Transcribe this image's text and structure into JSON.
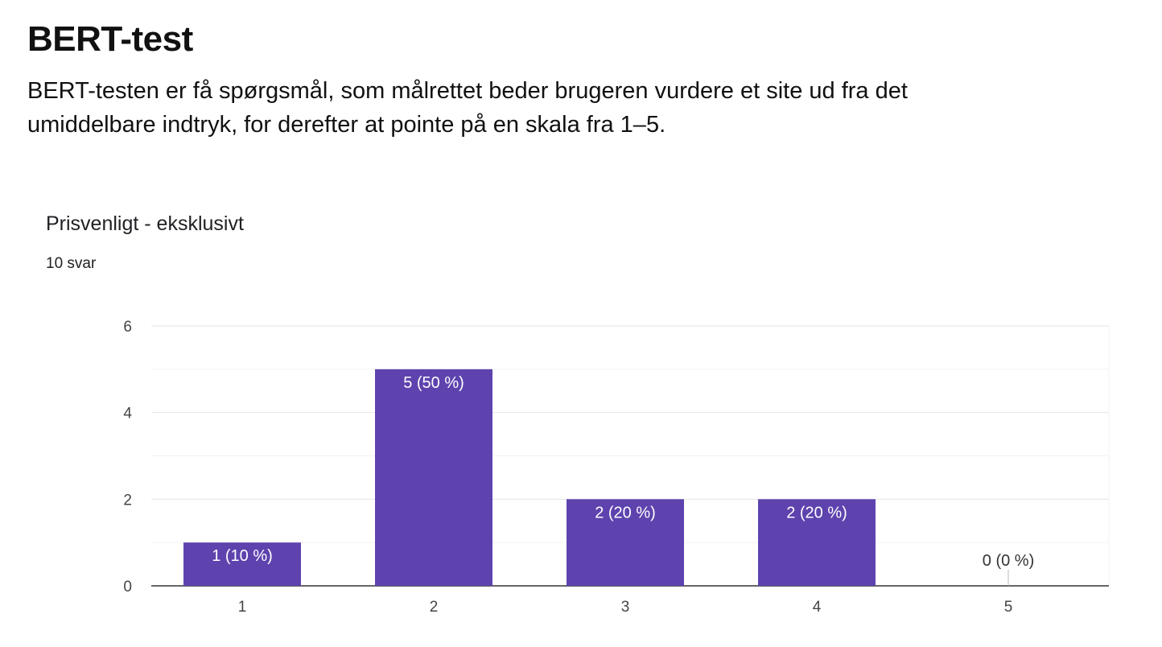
{
  "page": {
    "title": "BERT-test",
    "intro": "BERT-testen er få spørgsmål, som målrettet beder brugeren vurdere et site ud fra det umiddelbare indtryk, for derefter at pointe på en skala fra 1–5."
  },
  "chart_data": {
    "type": "bar",
    "title": "Prisvenligt - eksklusivt",
    "subtitle": "10 svar",
    "categories": [
      "1",
      "2",
      "3",
      "4",
      "5"
    ],
    "values": [
      1,
      5,
      2,
      2,
      0
    ],
    "labels": [
      "1 (10 %)",
      "5 (50 %)",
      "2 (20 %)",
      "2 (20 %)",
      "0 (0 %)"
    ],
    "ylim": [
      0,
      6
    ],
    "yticks": [
      0,
      2,
      4,
      6
    ],
    "grid": true,
    "legend": "none",
    "bar_color": "#5e43ae",
    "label_color_inside": "#ffffff",
    "label_color_outside": "#333333"
  }
}
